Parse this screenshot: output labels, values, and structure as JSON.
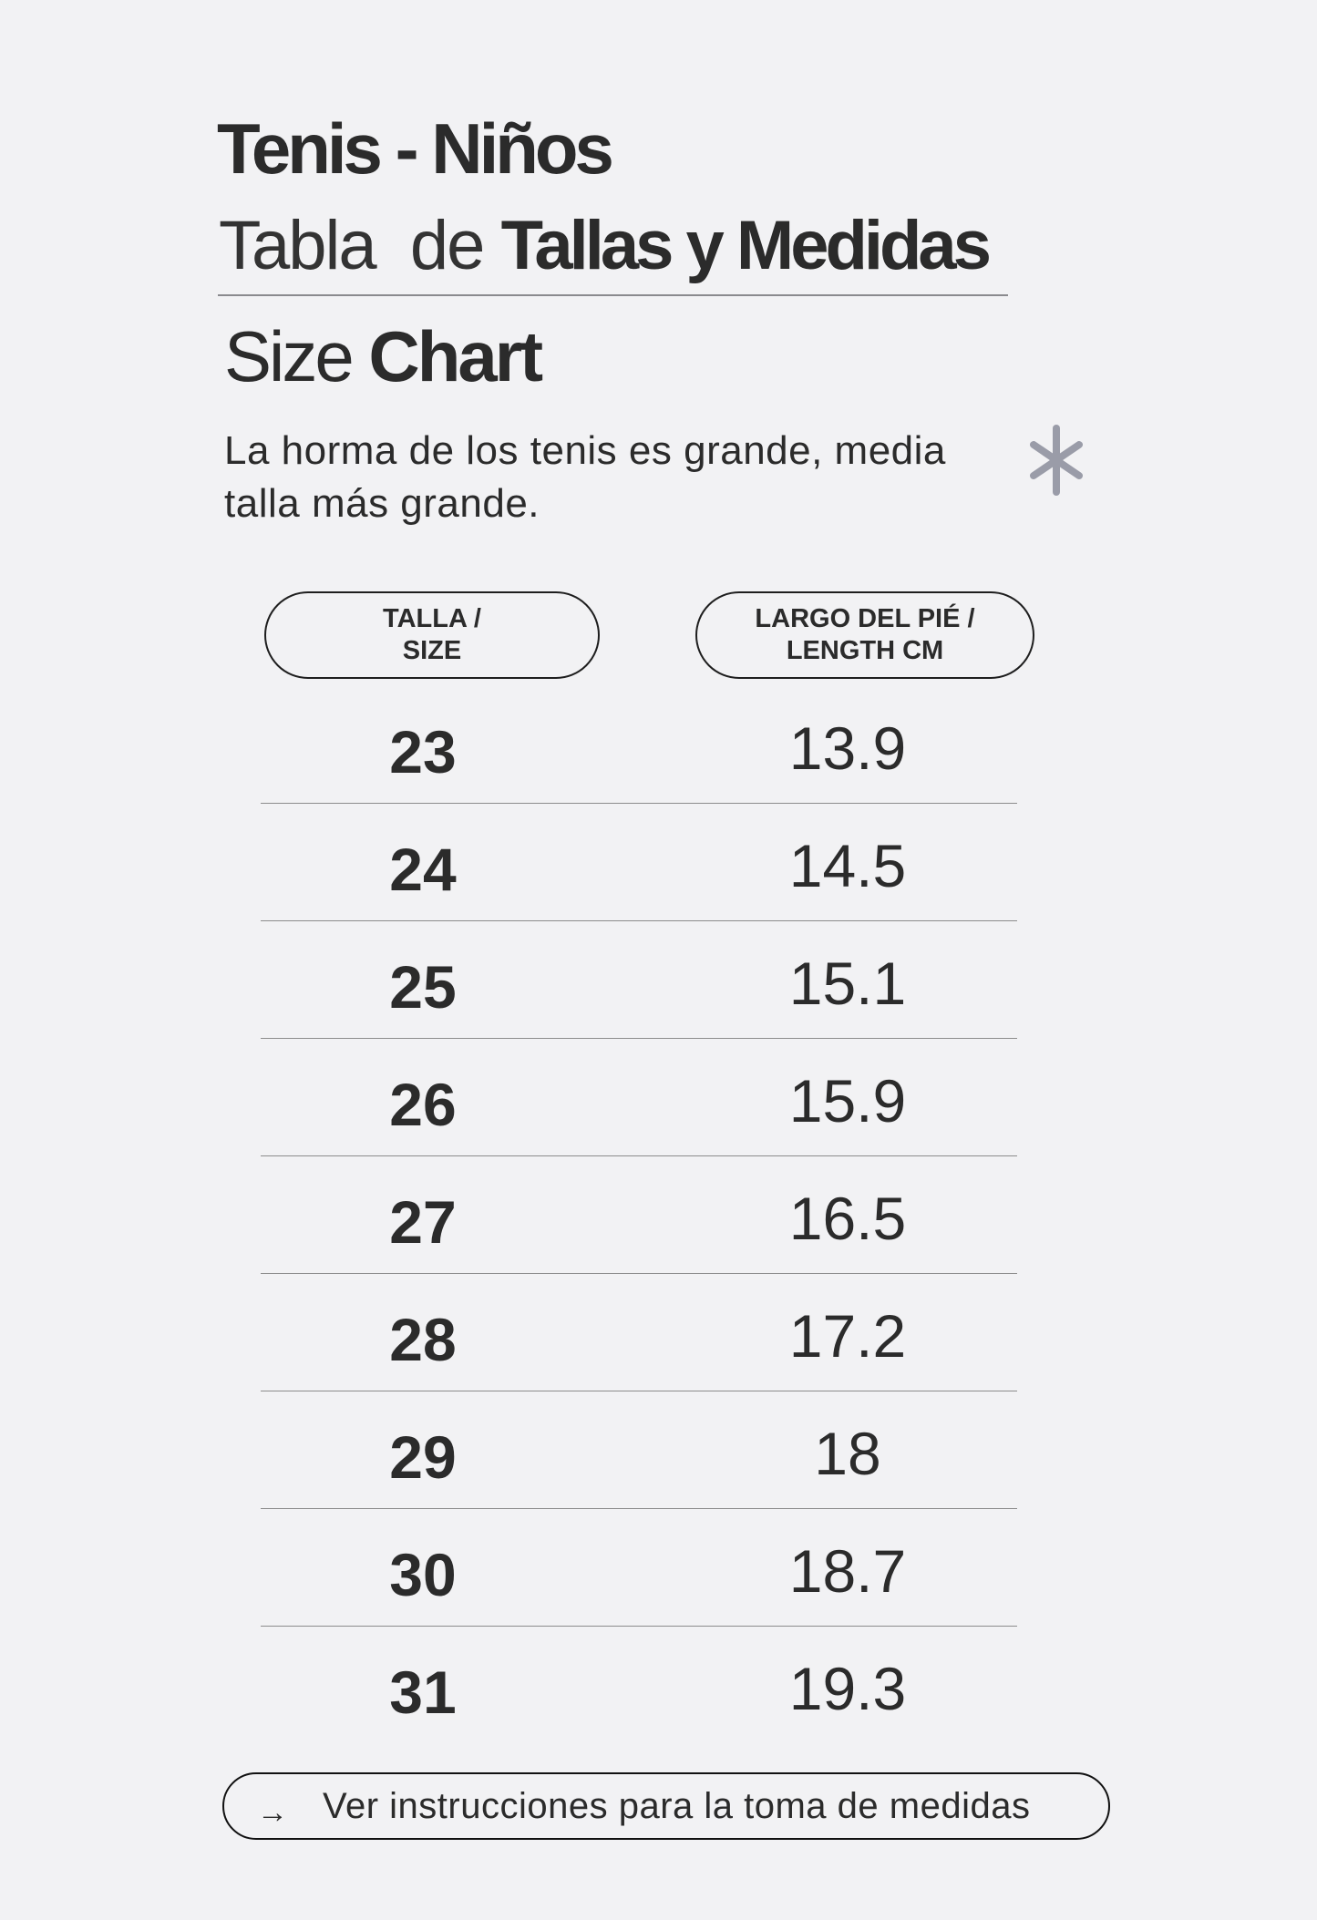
{
  "header": {
    "title": "Tenis - Niños",
    "subtitle_light": "Tabla  de ",
    "subtitle_bold": "Tallas y Medidas",
    "chart_title_light": "Size ",
    "chart_title_bold": "Chart",
    "note": "La horma de los tenis es grande, media talla más grande.",
    "note_icon": "asterisk-icon",
    "note_icon_color": "#9a9ca8"
  },
  "table": {
    "columns": [
      "TALLA / SIZE",
      "LARGO DEL PIÉ / LENGTH CM"
    ],
    "rows": [
      {
        "size": "23",
        "length": "13.9"
      },
      {
        "size": "24",
        "length": "14.5"
      },
      {
        "size": "25",
        "length": "15.1"
      },
      {
        "size": "26",
        "length": "15.9"
      },
      {
        "size": "27",
        "length": "16.5"
      },
      {
        "size": "28",
        "length": "17.2"
      },
      {
        "size": "29",
        "length": "18"
      },
      {
        "size": "30",
        "length": "18.7"
      },
      {
        "size": "31",
        "length": "19.3"
      }
    ]
  },
  "cta": {
    "icon": "arrow-right-icon",
    "arrow": "→",
    "label": "Ver instrucciones para la toma de medidas"
  }
}
